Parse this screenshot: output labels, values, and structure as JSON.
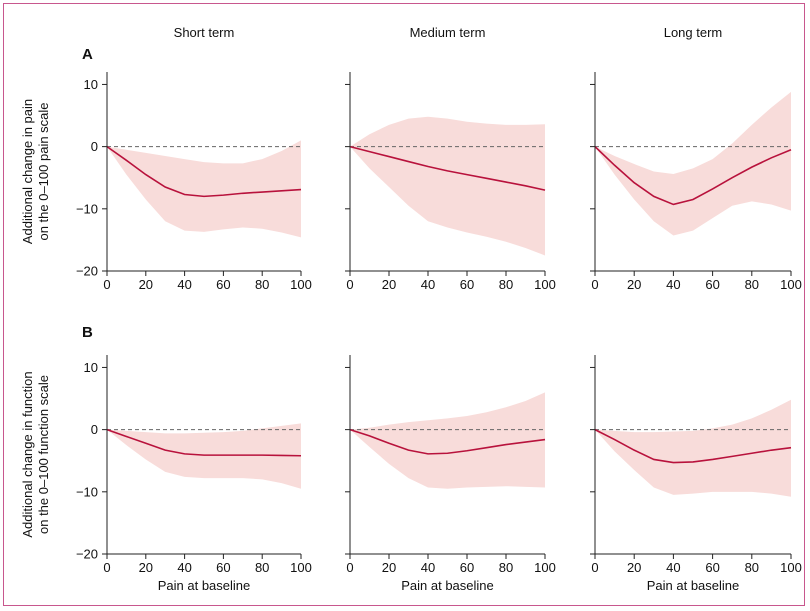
{
  "colors": {
    "frame": "#c8578e",
    "line": "#b8123c",
    "band": "#f8dcda",
    "axis": "#222222",
    "zero_line": "#666666"
  },
  "column_titles": [
    "Short term",
    "Medium term",
    "Long term"
  ],
  "chart_data": [
    {
      "panel": "A",
      "column": "Short term",
      "type": "area",
      "xlabel": "",
      "ylabel": "Additional change in pain on the 0–100 pain scale",
      "xlim": [
        0,
        100
      ],
      "ylim": [
        -20,
        12
      ],
      "xticks": [
        0,
        20,
        40,
        60,
        80,
        100
      ],
      "yticks": [
        -20,
        -10,
        0,
        10
      ],
      "reference_line_y": 0,
      "x": [
        0,
        10,
        20,
        30,
        40,
        50,
        60,
        70,
        80,
        90,
        100
      ],
      "estimate": [
        0,
        -2.2,
        -4.5,
        -6.5,
        -7.7,
        -8.0,
        -7.8,
        -7.5,
        -7.3,
        -7.1,
        -6.9
      ],
      "lower": [
        0,
        -4.5,
        -8.5,
        -12.0,
        -13.5,
        -13.7,
        -13.3,
        -13.0,
        -13.2,
        -13.8,
        -14.6
      ],
      "upper": [
        0,
        -0.5,
        -1.0,
        -1.5,
        -2.0,
        -2.5,
        -2.7,
        -2.7,
        -2.0,
        -0.7,
        1.0
      ]
    },
    {
      "panel": "A",
      "column": "Medium term",
      "type": "area",
      "xlabel": "",
      "ylabel": "",
      "xlim": [
        0,
        100
      ],
      "ylim": [
        -20,
        12
      ],
      "xticks": [
        0,
        20,
        40,
        60,
        80,
        100
      ],
      "yticks": [
        -20,
        -10,
        0,
        10
      ],
      "reference_line_y": 0,
      "x": [
        0,
        10,
        20,
        30,
        40,
        50,
        60,
        70,
        80,
        90,
        100
      ],
      "estimate": [
        0,
        -0.8,
        -1.6,
        -2.4,
        -3.2,
        -3.9,
        -4.5,
        -5.1,
        -5.7,
        -6.3,
        -7.0
      ],
      "lower": [
        0,
        -3.5,
        -6.5,
        -9.5,
        -12.0,
        -13.0,
        -13.8,
        -14.5,
        -15.3,
        -16.3,
        -17.5
      ],
      "upper": [
        0,
        2.0,
        3.5,
        4.5,
        4.8,
        4.5,
        4.0,
        3.7,
        3.5,
        3.5,
        3.6
      ]
    },
    {
      "panel": "A",
      "column": "Long term",
      "type": "area",
      "xlabel": "",
      "ylabel": "",
      "xlim": [
        0,
        100
      ],
      "ylim": [
        -20,
        12
      ],
      "xticks": [
        0,
        20,
        40,
        60,
        80,
        100
      ],
      "yticks": [
        -20,
        -10,
        0,
        10
      ],
      "reference_line_y": 0,
      "x": [
        0,
        10,
        20,
        30,
        40,
        50,
        60,
        70,
        80,
        90,
        100
      ],
      "estimate": [
        0,
        -3.0,
        -5.8,
        -8.0,
        -9.3,
        -8.5,
        -6.8,
        -5.0,
        -3.3,
        -1.8,
        -0.5
      ],
      "lower": [
        0,
        -4.5,
        -8.5,
        -12.0,
        -14.3,
        -13.5,
        -11.5,
        -9.5,
        -8.8,
        -9.3,
        -10.3
      ],
      "upper": [
        0,
        -1.5,
        -2.8,
        -4.0,
        -4.4,
        -3.5,
        -2.0,
        0.5,
        3.5,
        6.3,
        8.8
      ]
    },
    {
      "panel": "B",
      "column": "Short term",
      "type": "area",
      "xlabel": "Pain at baseline",
      "ylabel": "Additional change in function on the 0–100 function scale",
      "xlim": [
        0,
        100
      ],
      "ylim": [
        -20,
        12
      ],
      "xticks": [
        0,
        20,
        40,
        60,
        80,
        100
      ],
      "yticks": [
        -20,
        -10,
        0,
        10
      ],
      "reference_line_y": 0,
      "x": [
        0,
        10,
        20,
        30,
        40,
        50,
        60,
        70,
        80,
        90,
        100
      ],
      "estimate": [
        0,
        -1.1,
        -2.2,
        -3.3,
        -3.9,
        -4.1,
        -4.1,
        -4.1,
        -4.1,
        -4.15,
        -4.2
      ],
      "lower": [
        0,
        -2.5,
        -4.8,
        -6.8,
        -7.6,
        -7.8,
        -7.8,
        -7.8,
        -8.0,
        -8.6,
        -9.5
      ],
      "upper": [
        0,
        -0.2,
        -0.4,
        -0.6,
        -0.6,
        -0.5,
        -0.4,
        -0.2,
        0.2,
        0.6,
        1.0
      ]
    },
    {
      "panel": "B",
      "column": "Medium term",
      "type": "area",
      "xlabel": "Pain at baseline",
      "ylabel": "",
      "xlim": [
        0,
        100
      ],
      "ylim": [
        -20,
        12
      ],
      "xticks": [
        0,
        20,
        40,
        60,
        80,
        100
      ],
      "yticks": [
        -20,
        -10,
        0,
        10
      ],
      "reference_line_y": 0,
      "x": [
        0,
        10,
        20,
        30,
        40,
        50,
        60,
        70,
        80,
        90,
        100
      ],
      "estimate": [
        0,
        -1.0,
        -2.2,
        -3.3,
        -3.9,
        -3.8,
        -3.4,
        -2.9,
        -2.4,
        -2.0,
        -1.6
      ],
      "lower": [
        0,
        -2.8,
        -5.5,
        -7.8,
        -9.3,
        -9.5,
        -9.3,
        -9.2,
        -9.1,
        -9.2,
        -9.3
      ],
      "upper": [
        0,
        0.3,
        0.8,
        1.2,
        1.5,
        1.8,
        2.2,
        2.8,
        3.6,
        4.6,
        6.0
      ]
    },
    {
      "panel": "B",
      "column": "Long term",
      "type": "area",
      "xlabel": "Pain at baseline",
      "ylabel": "",
      "xlim": [
        0,
        100
      ],
      "ylim": [
        -20,
        12
      ],
      "xticks": [
        0,
        20,
        40,
        60,
        80,
        100
      ],
      "yticks": [
        -20,
        -10,
        0,
        10
      ],
      "reference_line_y": 0,
      "x": [
        0,
        10,
        20,
        30,
        40,
        50,
        60,
        70,
        80,
        90,
        100
      ],
      "estimate": [
        0,
        -1.6,
        -3.3,
        -4.8,
        -5.3,
        -5.2,
        -4.8,
        -4.3,
        -3.8,
        -3.3,
        -2.9
      ],
      "lower": [
        0,
        -3.5,
        -6.5,
        -9.3,
        -10.5,
        -10.3,
        -10.0,
        -10.0,
        -10.0,
        -10.3,
        -10.8
      ],
      "upper": [
        0,
        -0.2,
        -0.4,
        -0.4,
        -0.3,
        -0.2,
        0.2,
        0.8,
        1.8,
        3.2,
        4.8
      ]
    }
  ]
}
